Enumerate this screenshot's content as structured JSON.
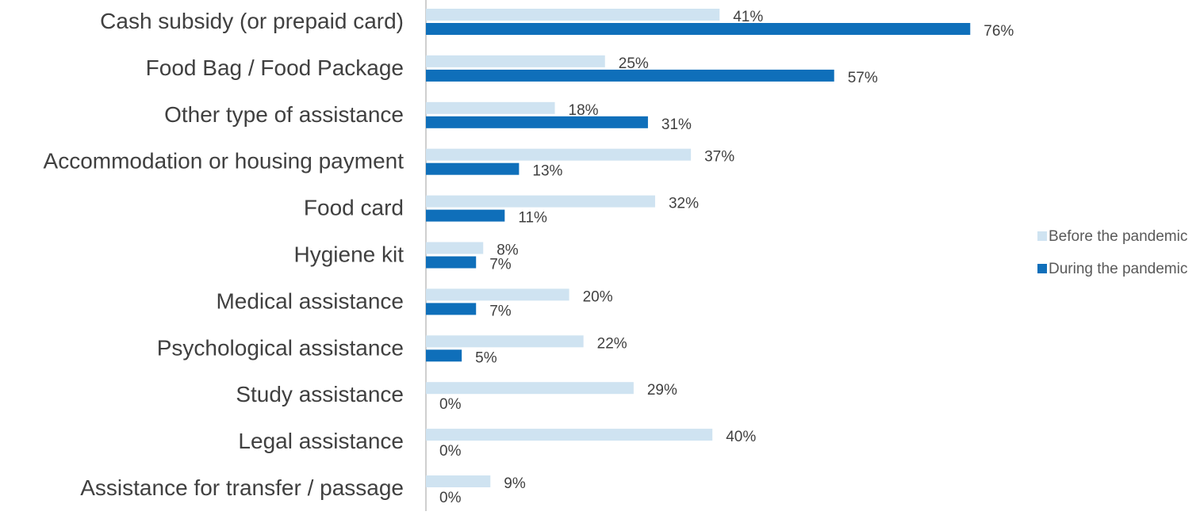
{
  "chart_data": {
    "type": "bar",
    "orientation": "horizontal",
    "categories": [
      "Cash subsidy (or prepaid card)",
      "Food Bag / Food Package",
      "Other type of assistance",
      "Accommodation or housing payment",
      "Food card",
      "Hygiene kit",
      "Medical assistance",
      "Psychological assistance",
      "Study assistance",
      "Legal assistance",
      "Assistance for transfer / passage"
    ],
    "series": [
      {
        "name": "Before the pandemic",
        "color": "#cfe3f1",
        "values": [
          41,
          25,
          18,
          37,
          32,
          8,
          20,
          22,
          29,
          40,
          9
        ],
        "labels": [
          "41%",
          "25%",
          "18%",
          "37%",
          "32%",
          "8%",
          "20%",
          "22%",
          "29%",
          "40%",
          "9%"
        ]
      },
      {
        "name": "During the pandemic",
        "color": "#0f6fba",
        "values": [
          76,
          57,
          31,
          13,
          11,
          7,
          7,
          5,
          0,
          0,
          0
        ],
        "labels": [
          "76%",
          "57%",
          "31%",
          "13%",
          "11%",
          "7%",
          "7%",
          "5%",
          "0%",
          "0%",
          "0%"
        ]
      }
    ],
    "xlim": [
      0,
      100
    ],
    "grid": false,
    "legend_position": "right"
  }
}
